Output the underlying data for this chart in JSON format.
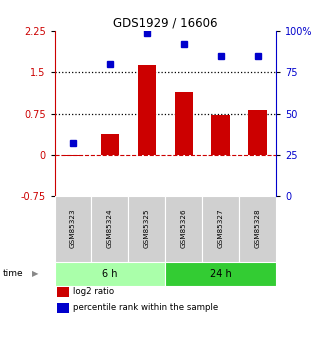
{
  "title": "GDS1929 / 16606",
  "samples": [
    "GSM85323",
    "GSM85324",
    "GSM85325",
    "GSM85326",
    "GSM85327",
    "GSM85328"
  ],
  "log2_ratio": [
    -0.02,
    0.38,
    1.63,
    1.15,
    0.72,
    0.82
  ],
  "percentile_rank": [
    32,
    80,
    99,
    92,
    85,
    85
  ],
  "bar_color": "#cc0000",
  "dot_color": "#0000cc",
  "left_yticks": [
    2.25,
    1.5,
    0.75,
    0.0,
    -0.75
  ],
  "left_ylabels": [
    "2.25",
    "1.5",
    "0.75",
    "0",
    "-0.75"
  ],
  "right_yticks": [
    100,
    75,
    50,
    25,
    0
  ],
  "right_ylabels": [
    "100%",
    "75",
    "50",
    "25",
    "0"
  ],
  "ylim": [
    -0.75,
    2.25
  ],
  "right_ylim": [
    0,
    100
  ],
  "hlines": [
    1.5,
    0.75
  ],
  "zero_line_color": "#cc0000",
  "hline_color": "#000000",
  "background_color": "#ffffff",
  "bar_width": 0.5,
  "group_defs": [
    {
      "indices": [
        0,
        1,
        2
      ],
      "label": "6 h",
      "color": "#aaffaa"
    },
    {
      "indices": [
        3,
        4,
        5
      ],
      "label": "24 h",
      "color": "#33cc33"
    }
  ],
  "legend_items": [
    {
      "label": "log2 ratio",
      "color": "#cc0000"
    },
    {
      "label": "percentile rank within the sample",
      "color": "#0000cc"
    }
  ]
}
